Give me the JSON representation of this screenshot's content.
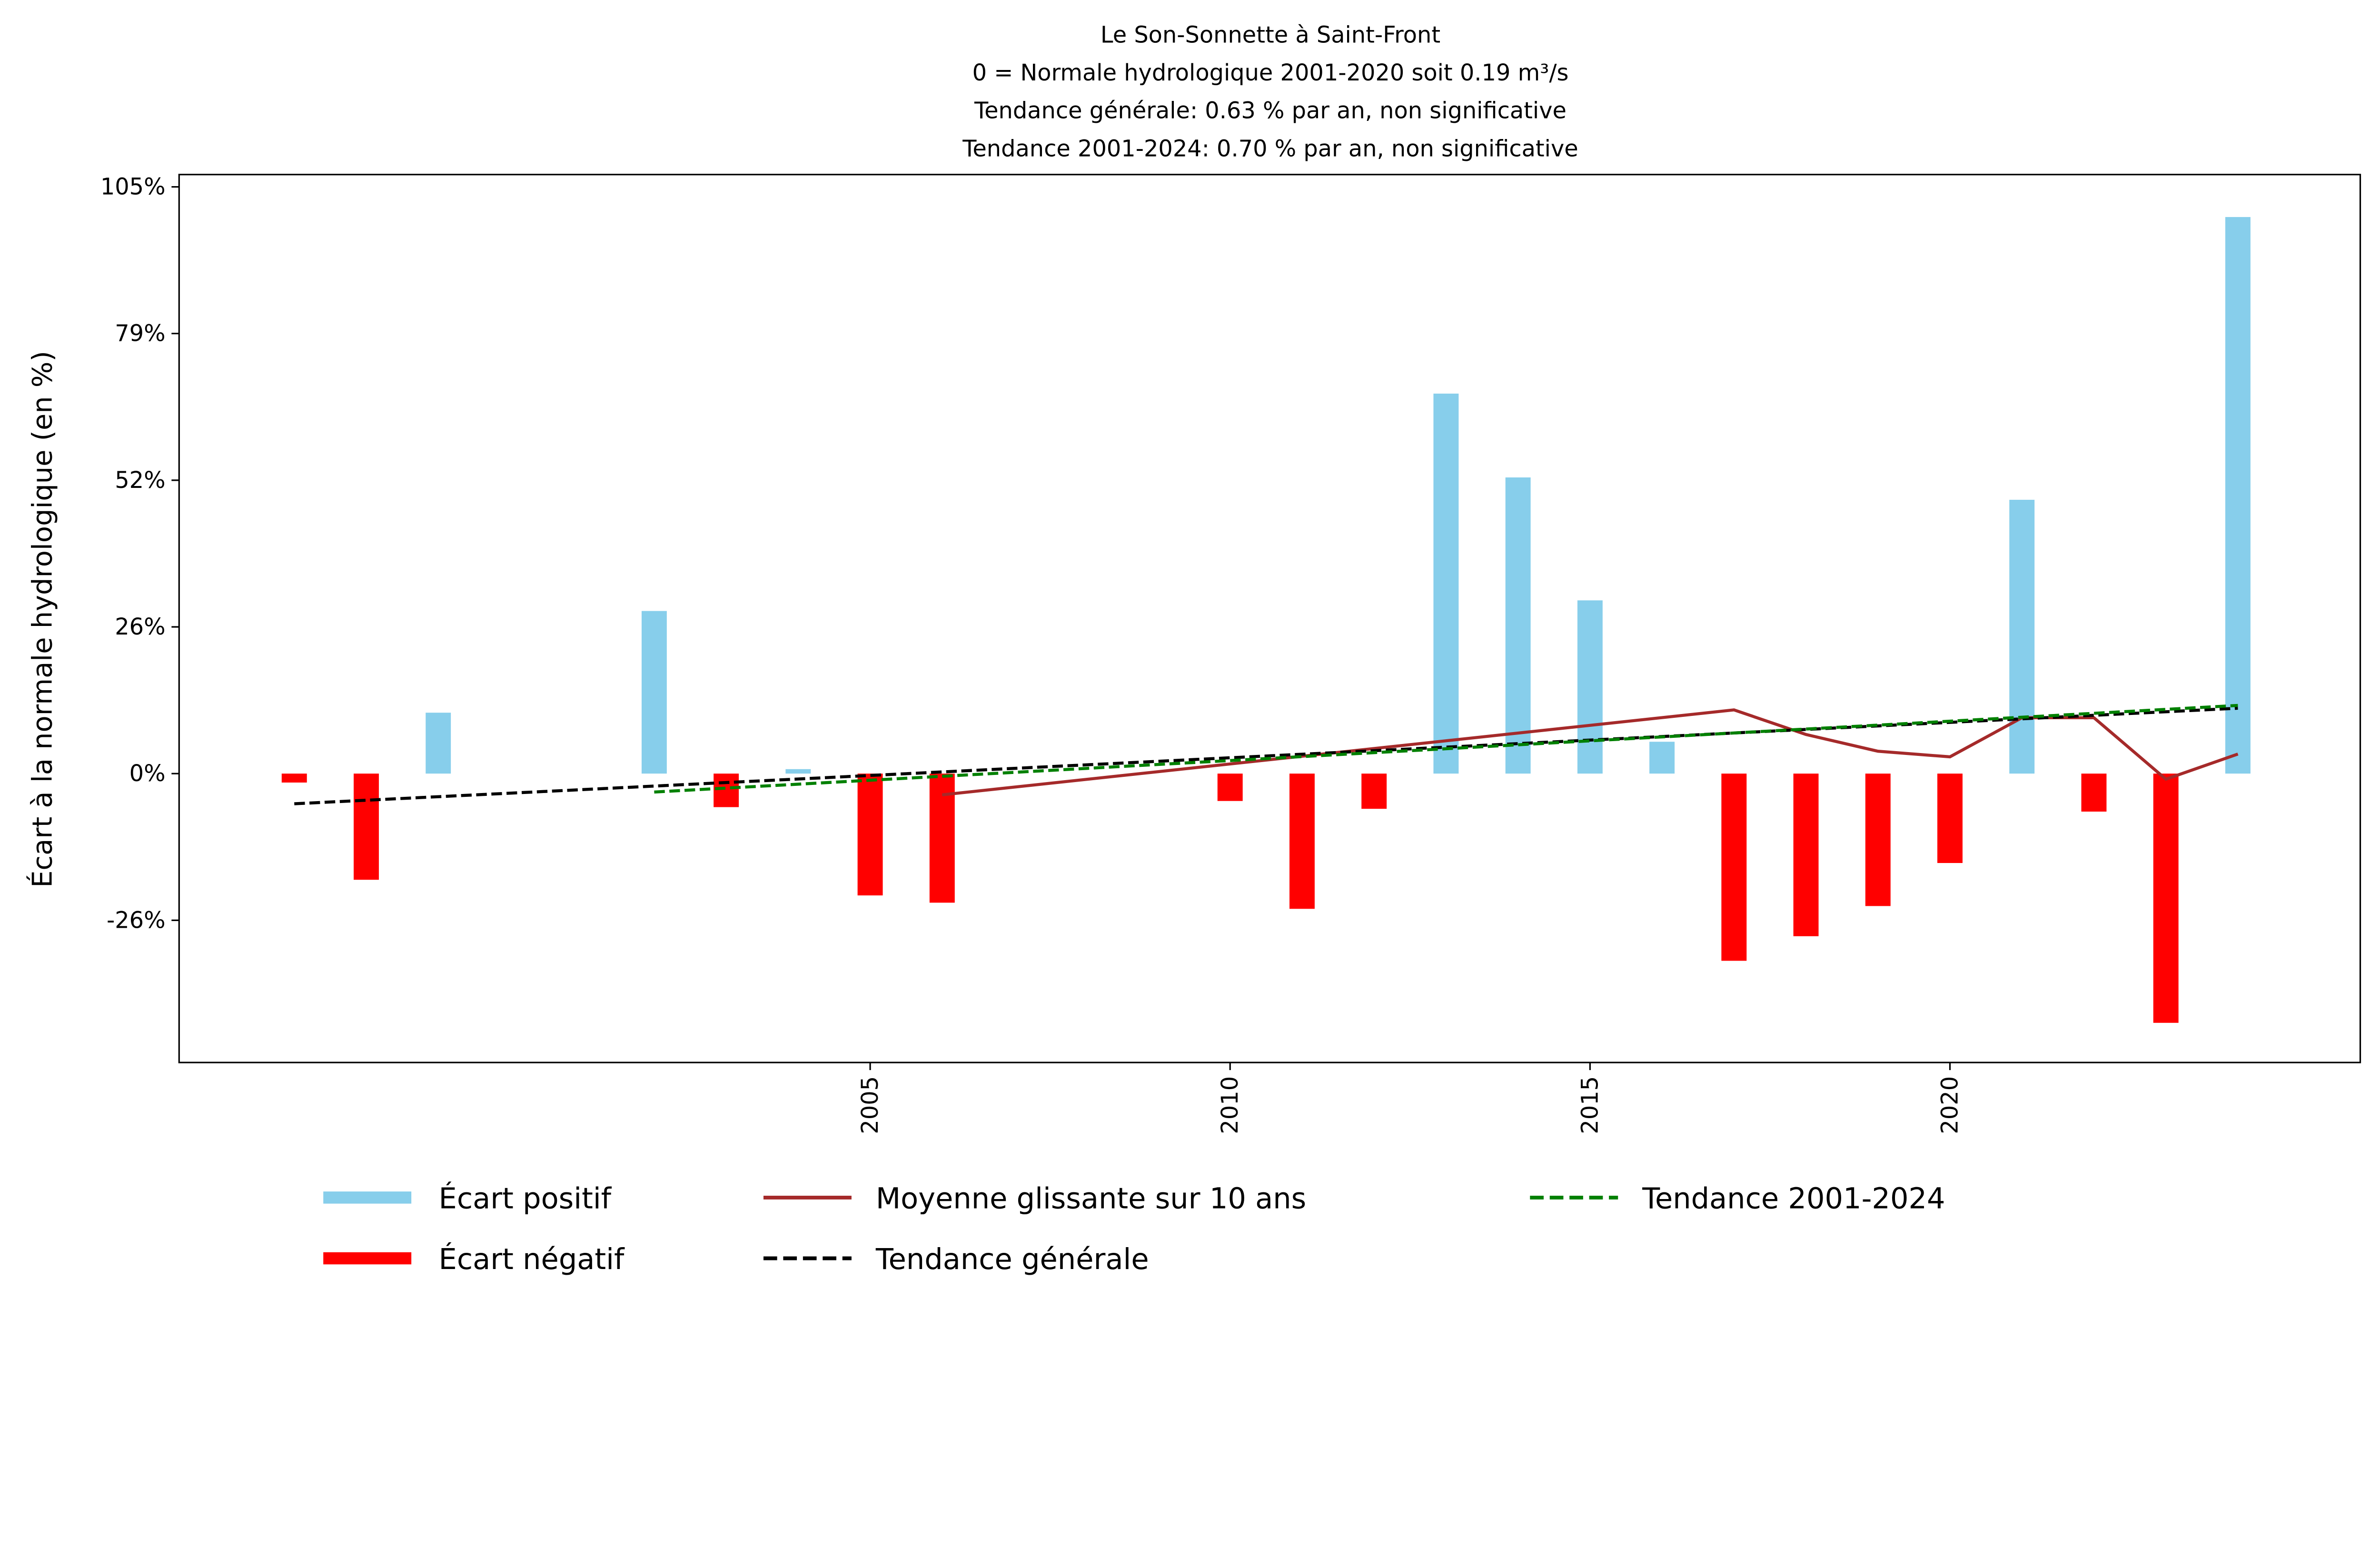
{
  "chart_data": {
    "type": "bar",
    "title_lines": [
      "Le Son-Sonnette à Saint-Front",
      "0 = Normale hydrologique 2001-2020 soit 0.19 m³/s",
      "Tendance générale: 0.63 % par an, non significative",
      "Tendance 2001-2024: 0.70 % par an, non significative"
    ],
    "xlabel": "",
    "ylabel": "Écart à la normale hydrologique (en %)",
    "xlim": [
      1995.4,
      2025.7
    ],
    "ylim": [
      -51.7,
      107.2
    ],
    "x_ticks": [
      2005,
      2010,
      2015,
      2020
    ],
    "x_tick_labels": [
      "2005",
      "2010",
      "2015",
      "2020"
    ],
    "y_ticks": [
      -26.25,
      0,
      26.25,
      52.5,
      78.75,
      105
    ],
    "y_tick_labels": [
      "-26%",
      "0%",
      "26%",
      "52%",
      "79%",
      "105%"
    ],
    "grid": false,
    "colors": {
      "positive": "#87ceeb",
      "negative": "#ff0000",
      "moving_avg": "#a52a2a",
      "trend_general": "#000000",
      "trend_period": "#008000"
    },
    "bars": {
      "years": [
        1997,
        1998,
        1999,
        2002,
        2003,
        2004,
        2005,
        2006,
        2010,
        2011,
        2012,
        2013,
        2014,
        2015,
        2016,
        2017,
        2018,
        2019,
        2020,
        2021,
        2022,
        2023,
        2024
      ],
      "values": [
        -1.6,
        -19.0,
        10.9,
        29.1,
        -6.0,
        0.8,
        -21.8,
        -23.1,
        -4.9,
        -24.2,
        -6.3,
        68.0,
        53.0,
        31.0,
        5.7,
        -33.5,
        -29.1,
        -23.7,
        -16.0,
        49.0,
        -6.8,
        -44.6,
        99.6
      ]
    },
    "series": [
      {
        "name": "Moyenne glissante sur 10 ans",
        "style": "solid",
        "x": [
          2006,
          2017,
          2018,
          2019,
          2020,
          2021,
          2022,
          2023,
          2024
        ],
        "y": [
          -3.8,
          11.4,
          7.0,
          4.0,
          3.0,
          10.0,
          10.0,
          -1.0,
          3.5
        ]
      },
      {
        "name": "Tendance générale",
        "style": "dashed",
        "x": [
          1997,
          2024
        ],
        "y": [
          -5.4,
          11.7
        ]
      },
      {
        "name": "Tendance 2001-2024",
        "style": "dashed",
        "x": [
          2002,
          2024
        ],
        "y": [
          -3.3,
          12.2
        ]
      }
    ],
    "legend": {
      "position": "bottom-center",
      "entries": [
        "Écart positif",
        "Écart négatif",
        "Moyenne glissante sur 10 ans",
        "Tendance générale",
        "Tendance 2001-2024"
      ]
    }
  }
}
